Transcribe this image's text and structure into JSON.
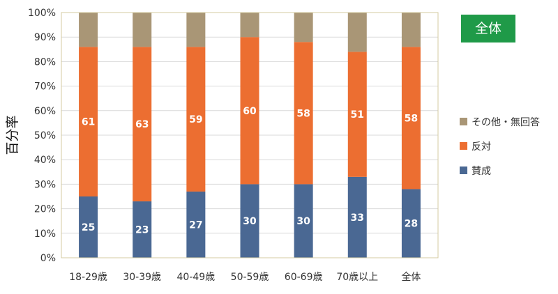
{
  "chart_data": {
    "type": "bar",
    "stacked": true,
    "ylabel": "百分率",
    "ylim": [
      0,
      100
    ],
    "yticks": [
      "0%",
      "10%",
      "20%",
      "30%",
      "40%",
      "50%",
      "60%",
      "70%",
      "80%",
      "90%",
      "100%"
    ],
    "categories": [
      "18-29歳",
      "30-39歳",
      "40-49歳",
      "50-59歳",
      "60-69歳",
      "70歳以上",
      "全体"
    ],
    "series": [
      {
        "name": "賛成",
        "color": "#4a6893",
        "values": [
          25,
          23,
          27,
          30,
          30,
          33,
          28
        ]
      },
      {
        "name": "反対",
        "color": "#ec6e31",
        "values": [
          61,
          63,
          59,
          60,
          58,
          51,
          58
        ]
      },
      {
        "name": "その他・無回答",
        "color": "#a99676",
        "values": [
          14,
          14,
          14,
          10,
          12,
          16,
          14
        ]
      }
    ],
    "data_labels_shown_for": [
      "賛成",
      "反対"
    ],
    "grid": true,
    "legend_position": "right",
    "badge": {
      "text": "全体",
      "color": "#1f9a48"
    }
  }
}
